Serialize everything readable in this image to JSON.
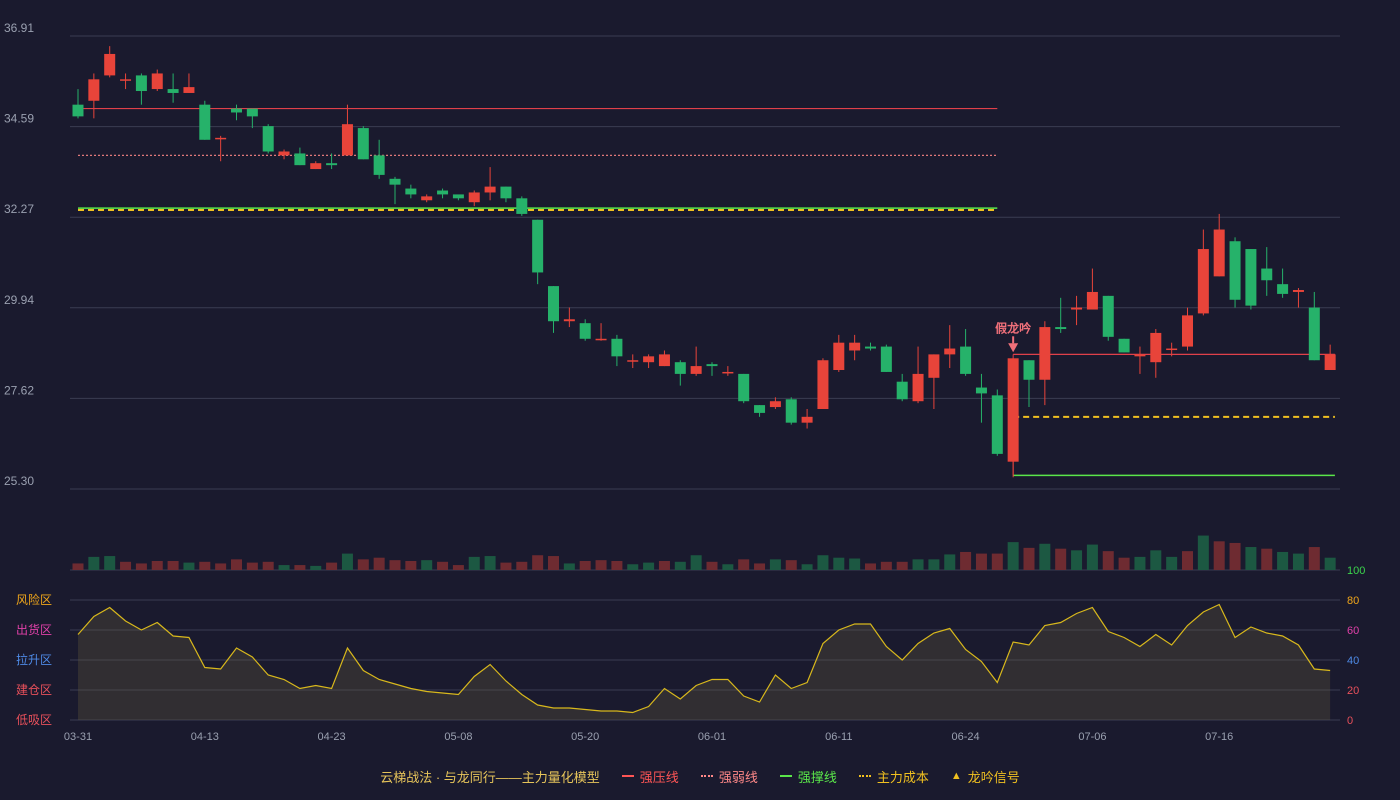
{
  "chart_data": {
    "type": "candlestick",
    "x_tick_labels": [
      "03-31",
      "04-13",
      "04-23",
      "05-08",
      "05-20",
      "06-01",
      "06-11",
      "06-24",
      "07-06",
      "07-16"
    ],
    "x_tick_index": [
      0,
      8,
      16,
      24,
      32,
      40,
      48,
      56,
      64,
      72
    ],
    "y_ticks": [
      "36.91",
      "34.59",
      "32.27",
      "29.94",
      "27.62",
      "25.30"
    ],
    "ylim": [
      25.3,
      36.91
    ],
    "candles": [
      [
        35.15,
        34.85,
        35.55,
        34.8
      ],
      [
        35.25,
        35.8,
        35.95,
        34.8
      ],
      [
        35.9,
        36.45,
        36.65,
        35.85
      ],
      [
        35.8,
        35.8,
        35.95,
        35.55
      ],
      [
        35.9,
        35.5,
        35.95,
        35.15
      ],
      [
        35.55,
        35.95,
        36.05,
        35.5
      ],
      [
        35.55,
        35.45,
        35.95,
        35.2
      ],
      [
        35.45,
        35.6,
        35.95,
        35.45
      ],
      [
        35.15,
        34.25,
        35.25,
        34.25
      ],
      [
        34.3,
        34.3,
        34.35,
        33.7
      ],
      [
        35.05,
        34.95,
        35.15,
        34.75
      ],
      [
        35.05,
        34.85,
        35.05,
        34.55
      ],
      [
        34.6,
        33.95,
        34.65,
        33.9
      ],
      [
        33.85,
        33.95,
        34.0,
        33.75
      ],
      [
        33.9,
        33.6,
        34.05,
        33.6
      ],
      [
        33.5,
        33.65,
        33.7,
        33.5
      ],
      [
        33.65,
        33.6,
        33.9,
        33.5
      ],
      [
        33.85,
        34.65,
        35.15,
        33.85
      ],
      [
        34.55,
        33.75,
        34.6,
        33.75
      ],
      [
        33.85,
        33.35,
        34.25,
        33.25
      ],
      [
        33.25,
        33.1,
        33.3,
        32.6
      ],
      [
        33.0,
        32.85,
        33.1,
        32.75
      ],
      [
        32.7,
        32.8,
        32.85,
        32.65
      ],
      [
        32.95,
        32.85,
        33.0,
        32.75
      ],
      [
        32.85,
        32.75,
        32.8,
        32.7
      ],
      [
        32.65,
        32.9,
        32.95,
        32.55
      ],
      [
        32.9,
        33.05,
        33.55,
        32.7
      ],
      [
        33.05,
        32.75,
        33.05,
        32.65
      ],
      [
        32.75,
        32.35,
        32.8,
        32.3
      ],
      [
        32.2,
        30.85,
        32.2,
        30.55
      ],
      [
        30.5,
        29.6,
        30.5,
        29.3
      ],
      [
        29.6,
        29.65,
        29.95,
        29.45
      ],
      [
        29.55,
        29.15,
        29.65,
        29.1
      ],
      [
        29.15,
        29.15,
        29.55,
        29.1
      ],
      [
        29.15,
        28.7,
        29.25,
        28.45
      ],
      [
        28.6,
        28.6,
        28.75,
        28.4
      ],
      [
        28.55,
        28.7,
        28.75,
        28.4
      ],
      [
        28.45,
        28.75,
        28.85,
        28.45
      ],
      [
        28.55,
        28.25,
        28.6,
        27.95
      ],
      [
        28.25,
        28.45,
        28.95,
        28.2
      ],
      [
        28.5,
        28.45,
        28.55,
        28.2
      ],
      [
        28.3,
        28.3,
        28.45,
        28.2
      ],
      [
        28.25,
        27.55,
        28.25,
        27.5
      ],
      [
        27.45,
        27.25,
        27.45,
        27.15
      ],
      [
        27.4,
        27.55,
        27.65,
        27.35
      ],
      [
        27.6,
        27.0,
        27.65,
        26.95
      ],
      [
        27.0,
        27.15,
        27.35,
        26.85
      ],
      [
        27.35,
        28.6,
        28.65,
        27.35
      ],
      [
        28.35,
        29.05,
        29.25,
        28.3
      ],
      [
        28.85,
        29.05,
        29.25,
        28.6
      ],
      [
        28.95,
        28.9,
        29.05,
        28.85
      ],
      [
        28.95,
        28.3,
        29.0,
        28.3
      ],
      [
        28.05,
        27.6,
        28.25,
        27.55
      ],
      [
        27.55,
        28.25,
        28.95,
        27.5
      ],
      [
        28.15,
        28.75,
        28.75,
        27.35
      ],
      [
        28.75,
        28.9,
        29.5,
        28.4
      ],
      [
        28.95,
        28.25,
        29.4,
        28.2
      ],
      [
        27.9,
        27.75,
        28.25,
        27.0
      ],
      [
        27.7,
        26.2,
        27.85,
        26.15
      ],
      [
        26.0,
        28.65,
        28.65,
        25.6
      ],
      [
        28.6,
        28.1,
        28.6,
        27.4
      ],
      [
        28.1,
        29.45,
        29.6,
        27.45
      ],
      [
        29.45,
        29.4,
        30.2,
        29.3
      ],
      [
        29.9,
        29.95,
        30.25,
        29.5
      ],
      [
        29.9,
        30.35,
        30.95,
        29.9
      ],
      [
        30.25,
        29.2,
        30.25,
        29.1
      ],
      [
        29.15,
        28.8,
        29.15,
        28.8
      ],
      [
        28.7,
        28.75,
        28.95,
        28.25
      ],
      [
        28.55,
        29.3,
        29.4,
        28.15
      ],
      [
        28.9,
        28.9,
        29.05,
        28.7
      ],
      [
        28.95,
        29.75,
        29.95,
        28.85
      ],
      [
        29.8,
        31.45,
        31.95,
        29.75
      ],
      [
        30.75,
        31.95,
        32.35,
        30.75
      ],
      [
        31.65,
        30.15,
        31.75,
        29.95
      ],
      [
        31.45,
        30.0,
        31.45,
        29.9
      ],
      [
        30.95,
        30.65,
        31.5,
        30.25
      ],
      [
        30.55,
        30.3,
        30.95,
        30.2
      ],
      [
        30.35,
        30.4,
        30.45,
        29.95
      ],
      [
        29.95,
        28.6,
        30.35,
        28.6
      ],
      [
        28.35,
        28.75,
        29.0,
        28.35
      ]
    ],
    "volume_up_color": "#6e2b31",
    "volume_down_color": "#1c5842",
    "volumes": [
      [
        8,
        0
      ],
      [
        16,
        1
      ],
      [
        17,
        1
      ],
      [
        10,
        0
      ],
      [
        8,
        0
      ],
      [
        11,
        0
      ],
      [
        11,
        0
      ],
      [
        9,
        1
      ],
      [
        10,
        0
      ],
      [
        8,
        0
      ],
      [
        13,
        0
      ],
      [
        9,
        0
      ],
      [
        10,
        0
      ],
      [
        6,
        1
      ],
      [
        6,
        0
      ],
      [
        5,
        1
      ],
      [
        9,
        0
      ],
      [
        20,
        1
      ],
      [
        13,
        0
      ],
      [
        15,
        0
      ],
      [
        12,
        0
      ],
      [
        11,
        0
      ],
      [
        12,
        1
      ],
      [
        10,
        0
      ],
      [
        6,
        0
      ],
      [
        16,
        1
      ],
      [
        17,
        1
      ],
      [
        9,
        0
      ],
      [
        10,
        0
      ],
      [
        18,
        0
      ],
      [
        17,
        0
      ],
      [
        8,
        1
      ],
      [
        11,
        0
      ],
      [
        12,
        0
      ],
      [
        11,
        0
      ],
      [
        7,
        1
      ],
      [
        9,
        1
      ],
      [
        11,
        0
      ],
      [
        10,
        1
      ],
      [
        18,
        1
      ],
      [
        10,
        0
      ],
      [
        7,
        1
      ],
      [
        13,
        0
      ],
      [
        8,
        0
      ],
      [
        13,
        1
      ],
      [
        12,
        0
      ],
      [
        7,
        1
      ],
      [
        18,
        1
      ],
      [
        15,
        1
      ],
      [
        14,
        1
      ],
      [
        8,
        0
      ],
      [
        10,
        0
      ],
      [
        10,
        0
      ],
      [
        13,
        1
      ],
      [
        13,
        1
      ],
      [
        19,
        1
      ],
      [
        22,
        0
      ],
      [
        20,
        0
      ],
      [
        20,
        0
      ],
      [
        34,
        1
      ],
      [
        27,
        0
      ],
      [
        32,
        1
      ],
      [
        26,
        0
      ],
      [
        24,
        1
      ],
      [
        31,
        1
      ],
      [
        23,
        0
      ],
      [
        15,
        0
      ],
      [
        16,
        1
      ],
      [
        24,
        1
      ],
      [
        16,
        1
      ],
      [
        23,
        0
      ],
      [
        42,
        1
      ],
      [
        35,
        0
      ],
      [
        33,
        0
      ],
      [
        28,
        1
      ],
      [
        26,
        0
      ],
      [
        22,
        1
      ],
      [
        20,
        1
      ],
      [
        28,
        0
      ],
      [
        15,
        1
      ]
    ],
    "volume_max": 100,
    "indicator": [
      57,
      69,
      75,
      66,
      60,
      65,
      56,
      55,
      35,
      34,
      48,
      42,
      30,
      27,
      21,
      23,
      21,
      48,
      33,
      27,
      24,
      21,
      19,
      18,
      17,
      29,
      37,
      26,
      17,
      10,
      8,
      8,
      7,
      6,
      6,
      5,
      9,
      21,
      14,
      23,
      27,
      27,
      16,
      12,
      30,
      21,
      25,
      51,
      60,
      64,
      64,
      49,
      40,
      51,
      58,
      61,
      47,
      39,
      25,
      52,
      50,
      63,
      65,
      71,
      75,
      59,
      55,
      49,
      57,
      50,
      63,
      72,
      77,
      55,
      62,
      58,
      56,
      50,
      34,
      33
    ],
    "indicator_ylim": [
      0,
      100
    ],
    "indicator_ticks": [
      "100",
      "80",
      "60",
      "40",
      "20",
      "0"
    ],
    "indicator_tick_colors": [
      "#3bd44c",
      "#f0a61a",
      "#e040a8",
      "#4e8ae6",
      "#e8505b",
      "#e8505b"
    ],
    "zone_labels": [
      "风险区",
      "出货区",
      "拉升区",
      "建仓区",
      "低吸区"
    ],
    "zone_colors": [
      "#f0a61a",
      "#e040a8",
      "#4e8ae6",
      "#e8505b",
      "#e8505b"
    ],
    "lines": {
      "strong_pressure": {
        "value": 35.05,
        "start": 0,
        "end": 58,
        "color": "#e0404a"
      },
      "strong_weak": {
        "value": 33.85,
        "start": 0,
        "end": 58,
        "color": "#e0787a"
      },
      "strong_support": {
        "value": 32.5,
        "start": 0,
        "end": 58,
        "color": "#5ae64a"
      },
      "main_cost_1": {
        "value": 32.45,
        "start": 0,
        "end": 58,
        "color": "#f0c020"
      },
      "strong_pressure_2": {
        "value": 28.75,
        "start": 59,
        "end": 79.3,
        "color": "#e0404a"
      },
      "main_cost_2": {
        "value": 27.15,
        "start": 59,
        "end": 79.3,
        "color": "#f0c020"
      },
      "strong_support_2": {
        "value": 25.65,
        "start": 59,
        "end": 79.3,
        "color": "#5ae64a"
      }
    },
    "signal": {
      "index": 59,
      "label": "假龙吟",
      "color": "#f0707a"
    },
    "up_color": "#e8443a",
    "down_color": "#26b26a"
  },
  "legend": {
    "title": "云梯战法 · 与龙同行——主力量化模型",
    "items": [
      {
        "label": "强压线",
        "color": "#ff5555",
        "style": "solid"
      },
      {
        "label": "强弱线",
        "color": "#ff8888",
        "style": "dotted"
      },
      {
        "label": "强撑线",
        "color": "#5ae64a",
        "style": "solid"
      },
      {
        "label": "主力成本",
        "color": "#f0c020",
        "style": "dotted"
      },
      {
        "label": "龙吟信号",
        "color": "#f0c020",
        "style": "triangle"
      }
    ]
  }
}
